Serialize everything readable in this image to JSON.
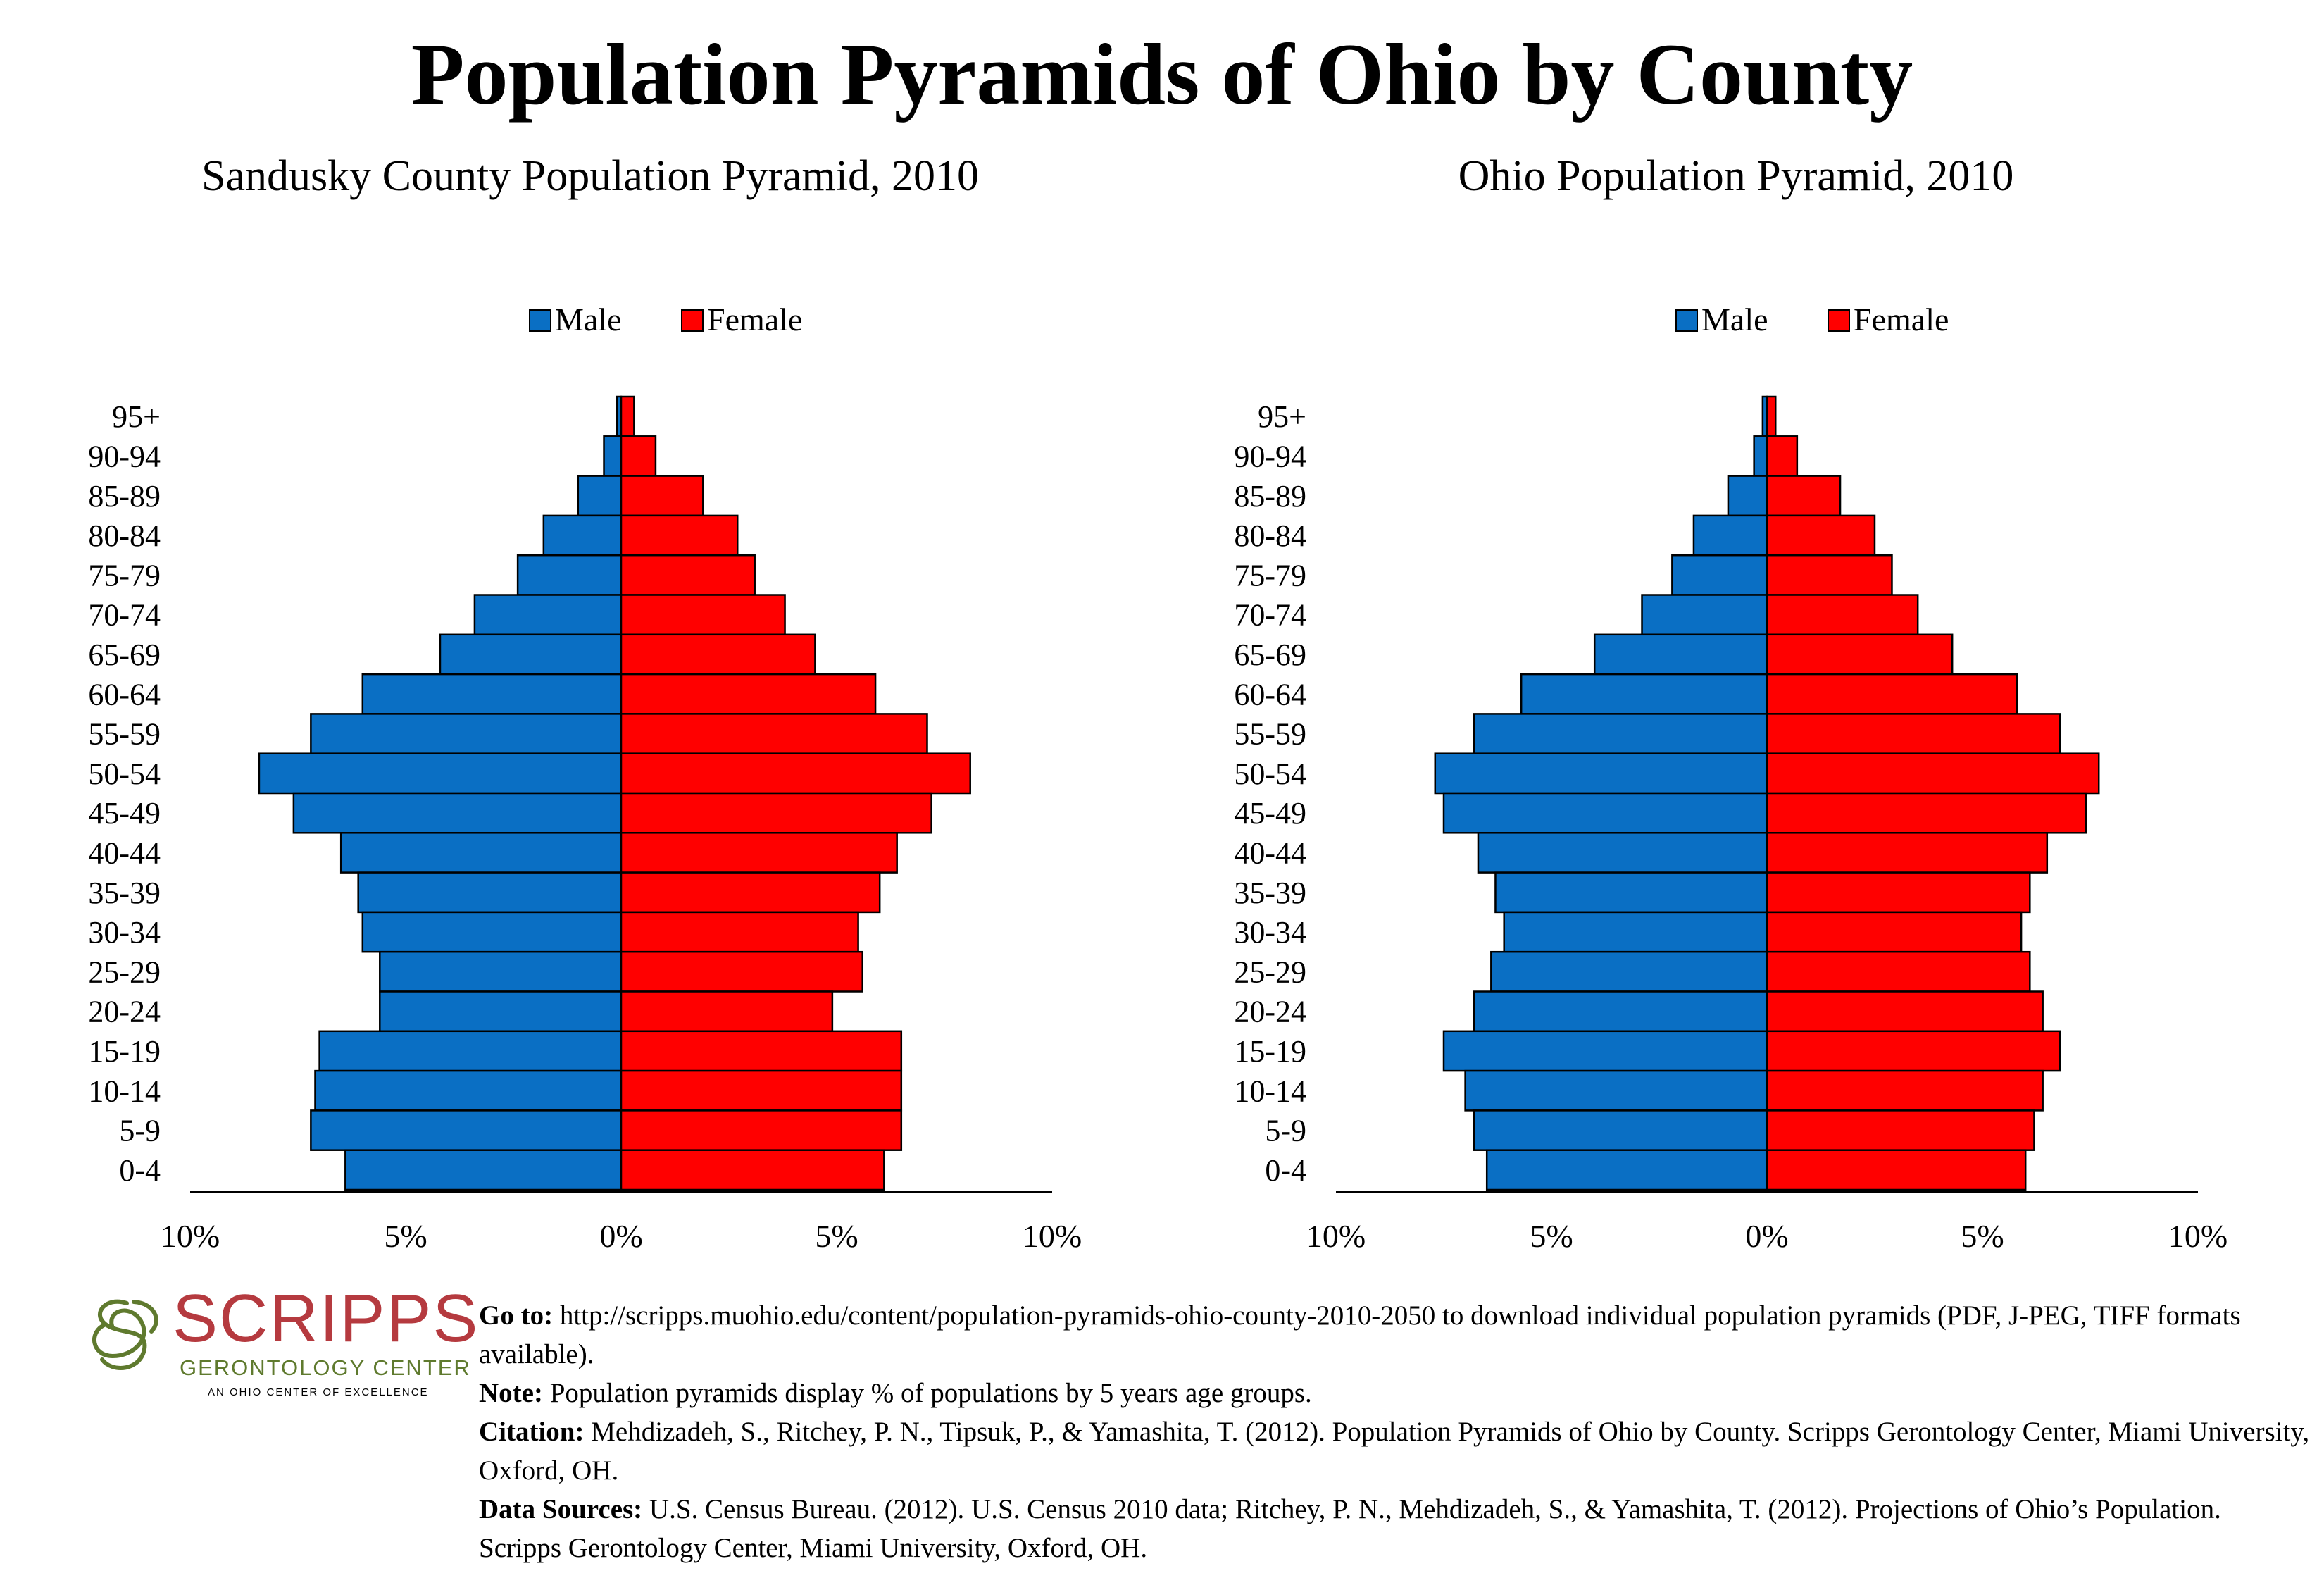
{
  "page": {
    "title": "Population Pyramids of Ohio by County",
    "colors": {
      "male": "#0a6fc4",
      "female": "#ff0000",
      "outline": "#000000"
    }
  },
  "chart_data": [
    {
      "type": "bar",
      "orientation": "horizontal-pyramid",
      "title": "Sandusky County Population Pyramid, 2010",
      "categories": [
        "95+",
        "90-94",
        "85-89",
        "80-84",
        "75-79",
        "70-74",
        "65-69",
        "60-64",
        "55-59",
        "50-54",
        "45-49",
        "40-44",
        "35-39",
        "30-34",
        "25-29",
        "20-24",
        "15-19",
        "10-14",
        "5-9",
        "0-4"
      ],
      "series": [
        {
          "name": "Male",
          "color": "#0a6fc4",
          "values": [
            0.1,
            0.4,
            1.0,
            1.8,
            2.4,
            3.4,
            4.2,
            6.0,
            7.2,
            8.4,
            7.6,
            6.5,
            6.1,
            6.0,
            5.6,
            5.6,
            7.0,
            7.1,
            7.2,
            6.4
          ]
        },
        {
          "name": "Female",
          "color": "#ff0000",
          "values": [
            0.3,
            0.8,
            1.9,
            2.7,
            3.1,
            3.8,
            4.5,
            5.9,
            7.1,
            8.1,
            7.2,
            6.4,
            6.0,
            5.5,
            5.6,
            4.9,
            6.5,
            6.5,
            6.5,
            6.1
          ]
        }
      ],
      "xlim": [
        -10,
        10
      ],
      "tick_values": [
        -10,
        -5,
        0,
        5,
        10
      ],
      "tick_labels": [
        "10%",
        "5%",
        "0%",
        "5%",
        "10%"
      ],
      "legend": "top-center",
      "grid": false
    },
    {
      "type": "bar",
      "orientation": "horizontal-pyramid",
      "title": "Ohio Population Pyramid, 2010",
      "categories": [
        "95+",
        "90-94",
        "85-89",
        "80-84",
        "75-79",
        "70-74",
        "65-69",
        "60-64",
        "55-59",
        "50-54",
        "45-49",
        "40-44",
        "35-39",
        "30-34",
        "25-29",
        "20-24",
        "15-19",
        "10-14",
        "5-9",
        "0-4"
      ],
      "series": [
        {
          "name": "Male",
          "color": "#0a6fc4",
          "values": [
            0.1,
            0.3,
            0.9,
            1.7,
            2.2,
            2.9,
            4.0,
            5.7,
            6.8,
            7.7,
            7.5,
            6.7,
            6.3,
            6.1,
            6.4,
            6.8,
            7.5,
            7.0,
            6.8,
            6.5
          ]
        },
        {
          "name": "Female",
          "color": "#ff0000",
          "values": [
            0.2,
            0.7,
            1.7,
            2.5,
            2.9,
            3.5,
            4.3,
            5.8,
            6.8,
            7.7,
            7.4,
            6.5,
            6.1,
            5.9,
            6.1,
            6.4,
            6.8,
            6.4,
            6.2,
            6.0
          ]
        }
      ],
      "xlim": [
        -10,
        10
      ],
      "tick_values": [
        -10,
        -5,
        0,
        5,
        10
      ],
      "tick_labels": [
        "10%",
        "5%",
        "0%",
        "5%",
        "10%"
      ],
      "legend": "top-center",
      "grid": false
    }
  ],
  "logo": {
    "name": "SCRIPPS",
    "subtitle": "GERONTOLOGY CENTER",
    "tagline": "AN OHIO CENTER OF EXCELLENCE"
  },
  "notes": {
    "goto_label": "Go to:",
    "goto_text": " http://scripps.muohio.edu/content/population-pyramids-ohio-county-2010-2050 to download individual population pyramids (PDF, J-PEG, TIFF formats available).",
    "note_label": "Note:",
    "note_text": " Population pyramids display % of populations by 5 years age groups.",
    "citation_label": "Citation:",
    "citation_text": " Mehdizadeh, S., Ritchey, P. N., Tipsuk, P., & Yamashita, T. (2012). Population Pyramids of Ohio by County. Scripps Gerontology Center, Miami University, Oxford, OH.",
    "sources_label": "Data Sources:",
    "sources_text": " U.S. Census Bureau. (2012). U.S. Census 2010 data; Ritchey, P. N., Mehdizadeh, S., & Yamashita, T. (2012). Projections of Ohio’s Population. Scripps Gerontology Center, Miami University, Oxford, OH."
  }
}
